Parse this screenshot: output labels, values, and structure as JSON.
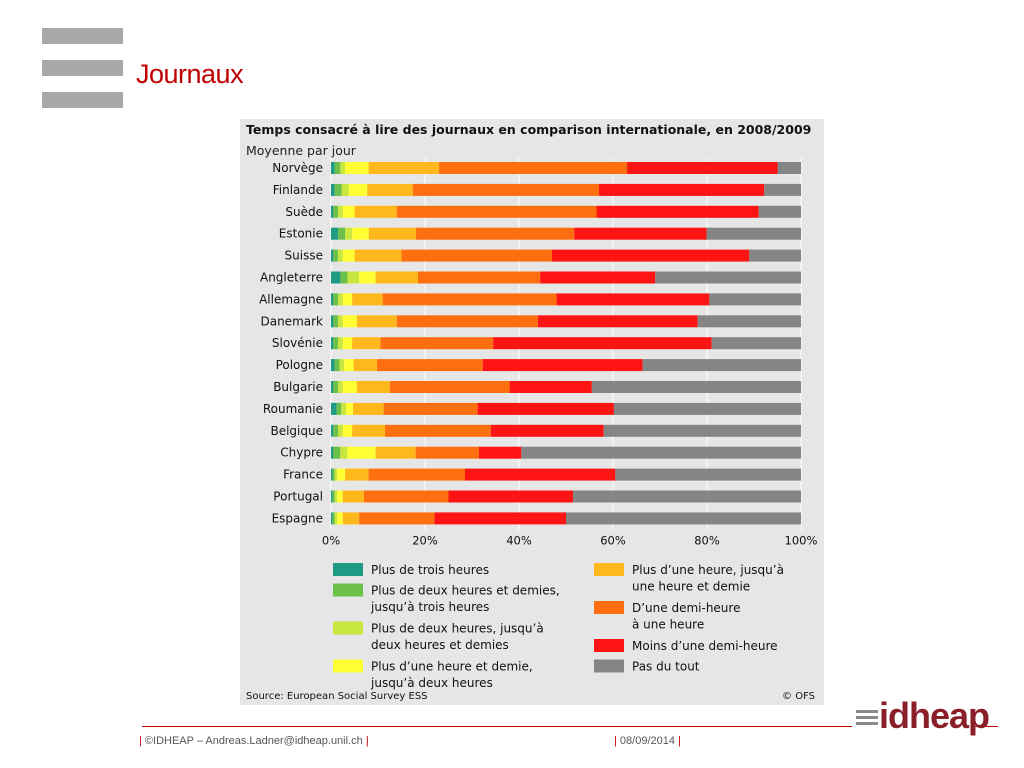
{
  "slide": {
    "title": "Journaux",
    "footer_left": "©IDHEAP – Andreas.Ladner@idheap.unil.ch",
    "footer_date": "08/09/2014",
    "pipe": "|",
    "logo_text": "idheap"
  },
  "chart_data": {
    "type": "bar",
    "orientation": "horizontal",
    "stacked": true,
    "normalized": true,
    "title": "Temps consacré à lire des journaux en comparison internationale, en 2008/2009",
    "subtitle": "Moyenne par jour",
    "source": "Source: European Social Survey ESS",
    "copyright": "© OFS",
    "xlim": [
      0,
      100
    ],
    "xticks": [
      "0%",
      "20%",
      "40%",
      "60%",
      "80%",
      "100%"
    ],
    "grid": true,
    "legend_position": "bottom",
    "categories": [
      "Norvège",
      "Finlande",
      "Suède",
      "Estonie",
      "Suisse",
      "Angleterre",
      "Allemagne",
      "Danemark",
      "Slovénie",
      "Pologne",
      "Bulgarie",
      "Roumanie",
      "Belgique",
      "Chypre",
      "France",
      "Portugal",
      "Espagne"
    ],
    "series": [
      {
        "name": "Plus de trois heures",
        "color": "#1f9a85",
        "values": [
          0.8,
          0.8,
          0.5,
          1.5,
          0.5,
          2.0,
          0.5,
          0.5,
          0.5,
          0.8,
          0.5,
          1.2,
          0.5,
          0.5,
          0.3,
          0.3,
          0.3
        ]
      },
      {
        "name": "Plus de deux heures et demies, jusqu'à trois heures",
        "color": "#6cc04a",
        "values": [
          1.2,
          1.5,
          1.0,
          1.5,
          1.0,
          1.5,
          1.0,
          1.0,
          1.0,
          1.0,
          1.0,
          1.0,
          1.0,
          1.5,
          0.5,
          0.5,
          0.5
        ]
      },
      {
        "name": "Plus de deux heures, jusqu'à deux heures et demies",
        "color": "#c8e640",
        "values": [
          1.0,
          1.5,
          1.0,
          1.5,
          1.0,
          2.5,
          1.0,
          1.0,
          1.0,
          1.0,
          1.0,
          1.0,
          1.0,
          1.5,
          0.5,
          0.5,
          0.5
        ]
      },
      {
        "name": "Plus d'une heure et demie, jusqu'à deux heures",
        "color": "#ffff33",
        "values": [
          5.0,
          4.0,
          2.5,
          3.5,
          2.5,
          3.5,
          2.0,
          3.0,
          2.0,
          2.0,
          3.0,
          1.5,
          2.0,
          6.0,
          1.7,
          1.2,
          1.2
        ]
      },
      {
        "name": "Plus d'une heure, jusqu'à une heure et demie",
        "color": "#ffb81c",
        "values": [
          15.0,
          9.8,
          9.0,
          10.0,
          10.0,
          9.0,
          6.5,
          8.5,
          6.0,
          5.0,
          7.0,
          6.5,
          7.0,
          8.5,
          5.0,
          4.5,
          3.5
        ]
      },
      {
        "name": "D'une demi-heure à une heure",
        "color": "#ff6f0f",
        "values": [
          40.0,
          40.0,
          42.5,
          33.5,
          32.0,
          26.0,
          37.0,
          30.0,
          24.0,
          22.5,
          25.5,
          20.0,
          22.5,
          13.5,
          20.5,
          18.0,
          16.0
        ]
      },
      {
        "name": "Moins d'une demi-heure",
        "color": "#ff1414",
        "values": [
          32.0,
          35.5,
          34.5,
          28.0,
          42.0,
          24.5,
          32.5,
          34.0,
          46.5,
          34.0,
          17.5,
          29.0,
          24.0,
          9.0,
          32.0,
          26.5,
          28.0
        ]
      },
      {
        "name": "Pas du tout",
        "color": "#858585",
        "values": [
          5.0,
          7.9,
          9.0,
          20.0,
          11.0,
          31.0,
          19.5,
          22.0,
          19.0,
          33.7,
          44.5,
          39.8,
          42.0,
          59.5,
          39.5,
          48.5,
          50.0
        ]
      }
    ],
    "legend_columns": [
      [
        {
          "series": 0,
          "lines": [
            "Plus de trois heures"
          ]
        },
        {
          "series": 1,
          "lines": [
            "Plus de deux heures et demies,",
            "jusqu’à trois heures"
          ]
        },
        {
          "series": 2,
          "lines": [
            "Plus de deux heures, jusqu’à",
            "deux heures et demies"
          ]
        },
        {
          "series": 3,
          "lines": [
            "Plus d’une heure et demie,",
            "jusqu’à deux heures"
          ]
        }
      ],
      [
        {
          "series": 4,
          "lines": [
            "Plus d’une heure, jusqu’à",
            "une heure et demie"
          ]
        },
        {
          "series": 5,
          "lines": [
            "D’une demi-heure",
            "à une heure"
          ]
        },
        {
          "series": 6,
          "lines": [
            "Moins d’une demi-heure"
          ]
        },
        {
          "series": 7,
          "lines": [
            "Pas du tout"
          ]
        }
      ]
    ]
  }
}
